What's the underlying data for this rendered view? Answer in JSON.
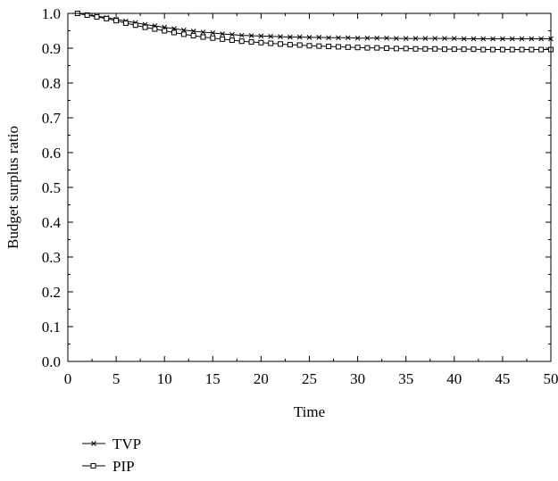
{
  "chart_data": {
    "type": "line",
    "xlabel": "Time",
    "ylabel": "Budget surplus ratio",
    "xlim": [
      0,
      50
    ],
    "ylim": [
      0,
      1.0
    ],
    "x_ticks": [
      "0",
      "5",
      "10",
      "15",
      "20",
      "25",
      "30",
      "35",
      "40",
      "45",
      "50"
    ],
    "y_ticks": [
      "0.0",
      "0.1",
      "0.2",
      "0.3",
      "0.4",
      "0.5",
      "0.6",
      "0.7",
      "0.8",
      "0.9",
      "1.0"
    ],
    "grid": false,
    "legend_position": "below-left",
    "x": [
      1,
      2,
      3,
      4,
      5,
      6,
      7,
      8,
      9,
      10,
      11,
      12,
      13,
      14,
      15,
      16,
      17,
      18,
      19,
      20,
      21,
      22,
      23,
      24,
      25,
      26,
      27,
      28,
      29,
      30,
      31,
      32,
      33,
      34,
      35,
      36,
      37,
      38,
      39,
      40,
      41,
      42,
      43,
      44,
      45,
      46,
      47,
      48,
      49,
      50
    ],
    "series": [
      {
        "name": "TVP",
        "marker": "x",
        "values": [
          1.0,
          0.996,
          0.992,
          0.988,
          0.983,
          0.978,
          0.973,
          0.968,
          0.964,
          0.96,
          0.956,
          0.952,
          0.949,
          0.946,
          0.944,
          0.941,
          0.939,
          0.937,
          0.936,
          0.935,
          0.934,
          0.933,
          0.932,
          0.932,
          0.931,
          0.931,
          0.93,
          0.93,
          0.93,
          0.929,
          0.929,
          0.929,
          0.929,
          0.928,
          0.928,
          0.928,
          0.928,
          0.928,
          0.928,
          0.928,
          0.927,
          0.927,
          0.927,
          0.927,
          0.927,
          0.927,
          0.927,
          0.927,
          0.927,
          0.927
        ]
      },
      {
        "name": "PIP",
        "marker": "square",
        "values": [
          1.0,
          0.995,
          0.99,
          0.985,
          0.979,
          0.972,
          0.966,
          0.96,
          0.955,
          0.95,
          0.945,
          0.94,
          0.936,
          0.932,
          0.929,
          0.926,
          0.923,
          0.92,
          0.918,
          0.916,
          0.914,
          0.912,
          0.91,
          0.909,
          0.907,
          0.906,
          0.905,
          0.904,
          0.903,
          0.902,
          0.901,
          0.901,
          0.9,
          0.899,
          0.899,
          0.898,
          0.898,
          0.898,
          0.897,
          0.897,
          0.897,
          0.897,
          0.896,
          0.896,
          0.896,
          0.896,
          0.896,
          0.896,
          0.896,
          0.896
        ]
      }
    ]
  }
}
